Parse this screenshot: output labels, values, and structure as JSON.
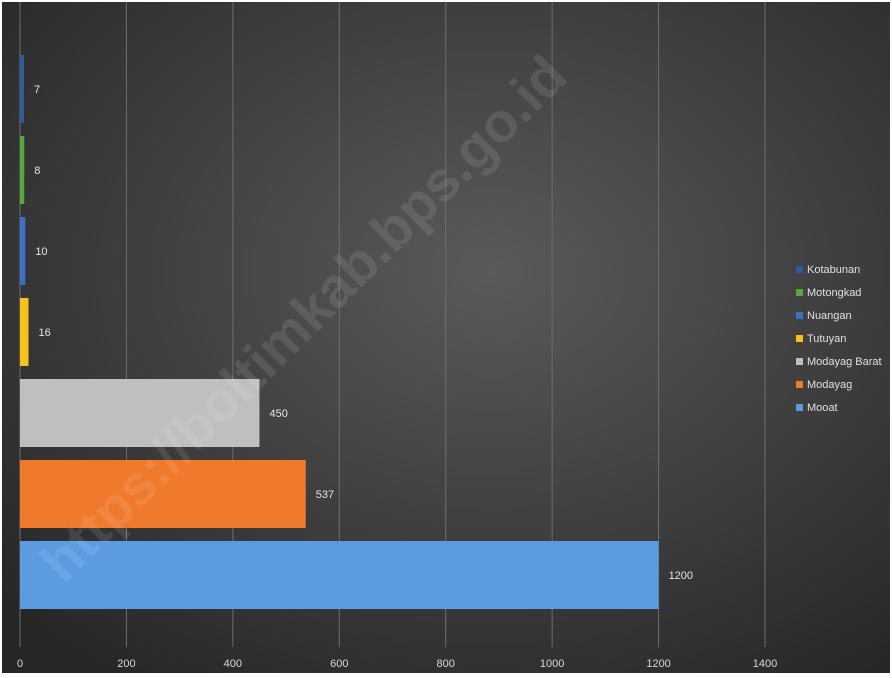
{
  "watermark": "https://boltimkab.bps.go.id",
  "chart_data": {
    "type": "bar",
    "orientation": "horizontal",
    "categories": [
      "Kotabunan",
      "Motongkad",
      "Nuangan",
      "Tutuyan",
      "Modayag Barat",
      "Modayag",
      "Mooat"
    ],
    "values": [
      7,
      8,
      10,
      16,
      450,
      537,
      1200
    ],
    "colors": [
      "#2e5d9c",
      "#5aa63f",
      "#3d6fc6",
      "#f7c21a",
      "#bfbfbf",
      "#ef7a2c",
      "#5b9be0"
    ],
    "xlim": [
      0,
      1400
    ],
    "xticks": [
      0,
      200,
      400,
      600,
      800,
      1000,
      1200,
      1400
    ],
    "grid": true,
    "legend_position": "right",
    "data_labels": true,
    "title": "",
    "xlabel": "",
    "ylabel": ""
  }
}
